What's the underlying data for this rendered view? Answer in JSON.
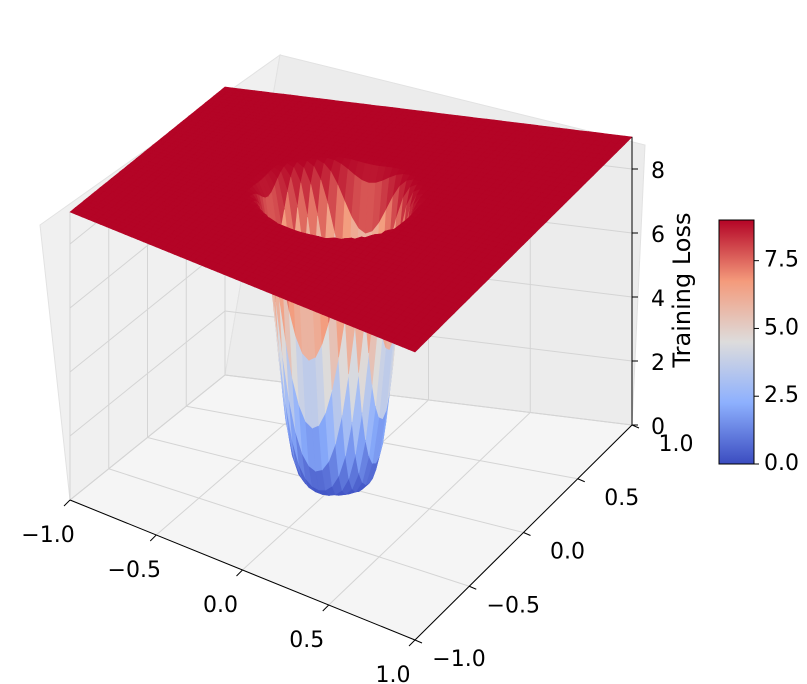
{
  "chart_data": {
    "type": "surface3d",
    "title": "",
    "xlabel": "",
    "ylabel": "",
    "zlabel": "Training Loss",
    "x_ticks": [
      "−1.0",
      "−0.5",
      "0.0",
      "0.5",
      "1.0"
    ],
    "y_ticks": [
      "−1.0",
      "−0.5",
      "0.0",
      "0.5",
      "1.0"
    ],
    "z_ticks": [
      "0",
      "2",
      "4",
      "6",
      "8"
    ],
    "xlim": [
      -1.0,
      1.0
    ],
    "ylim": [
      -1.0,
      1.0
    ],
    "zlim": [
      0,
      9
    ],
    "surface": {
      "description": "loss basin: flat plateau near z=9 at the edges of the grid, narrow cylindrical well dropping to ~0 at the center (radius ~0.3), slight periodic ripples",
      "z_min": 0.0,
      "z_max": 9.0,
      "plateau_value": 9.0,
      "well_radius": 0.3
    },
    "colorbar": {
      "colormap": "coolwarm",
      "range": [
        0.0,
        9.0
      ],
      "ticks": [
        "0.0",
        "2.5",
        "5.0",
        "7.5"
      ],
      "low_color": "#3b4cc0",
      "mid_color": "#dddddd",
      "high_color": "#b40426"
    },
    "grid": true,
    "pane_color": "#f2f2f2"
  }
}
